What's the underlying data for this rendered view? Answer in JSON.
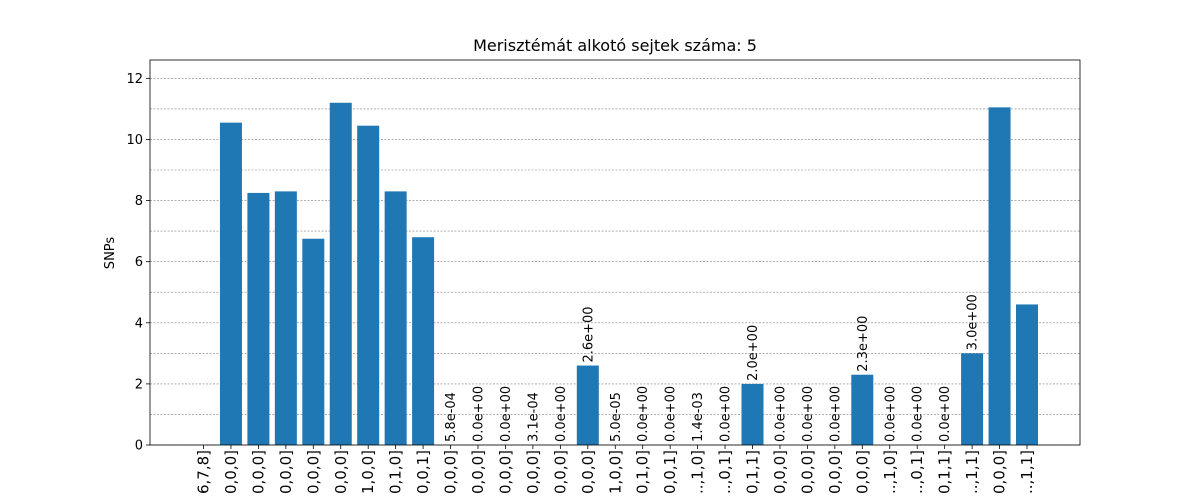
{
  "chart_data": {
    "type": "bar",
    "title": "Merisztémát alkotó sejtek száma: 5",
    "y_label": "SNPs",
    "categories": [
      "6,7,8]",
      "0,0,0]",
      "0,0,0]",
      "0,0,0]",
      "0,0,0]",
      "0,0,0]",
      "1,0,0]",
      "0,1,0]",
      "0,0,1]",
      "0,0,0]",
      "0,0,0]",
      "0,0,0]",
      "0,0,0]",
      "0,0,0]",
      "0,0,0]",
      "1,0,0]",
      "0,1,0]",
      "0,0,1]",
      "..,1,0]",
      "..,0,1]",
      "0,1,1]",
      "0,0,0]",
      "0,0,0]",
      "0,0,0]",
      "0,0,0]",
      "..,1,0]",
      "..,0,1]",
      "0,1,1]",
      "..,1,1]",
      "0,0,0]",
      "..,1,1]"
    ],
    "values": [
      0,
      10.55,
      8.25,
      8.3,
      6.75,
      11.2,
      10.45,
      8.3,
      6.8,
      0.00058,
      0,
      0,
      0.00031,
      0,
      2.6,
      5e-05,
      0,
      0,
      0.0014,
      0,
      2.0,
      0,
      0,
      0,
      2.3,
      0,
      0,
      0,
      3.0,
      11.05,
      4.6
    ],
    "value_labels": [
      null,
      null,
      null,
      null,
      null,
      null,
      null,
      null,
      null,
      "5.8e-04",
      "0.0e+00",
      "0.0e+00",
      "3.1e-04",
      "0.0e+00",
      "2.6e+00",
      "5.0e-05",
      "0.0e+00",
      "0.0e+00",
      "1.4e-03",
      "0.0e+00",
      "2.0e+00",
      "0.0e+00",
      "0.0e+00",
      "0.0e+00",
      "2.3e+00",
      "0.0e+00",
      "0.0e+00",
      "0.0e+00",
      "3.0e+00",
      null,
      null
    ],
    "color": "#1f77b4",
    "ylim": [
      0,
      12.6
    ],
    "yticks": [
      0,
      2,
      4,
      6,
      8,
      10,
      12
    ],
    "yminor": [
      1,
      3,
      5,
      7,
      9,
      11
    ],
    "grid": true
  }
}
